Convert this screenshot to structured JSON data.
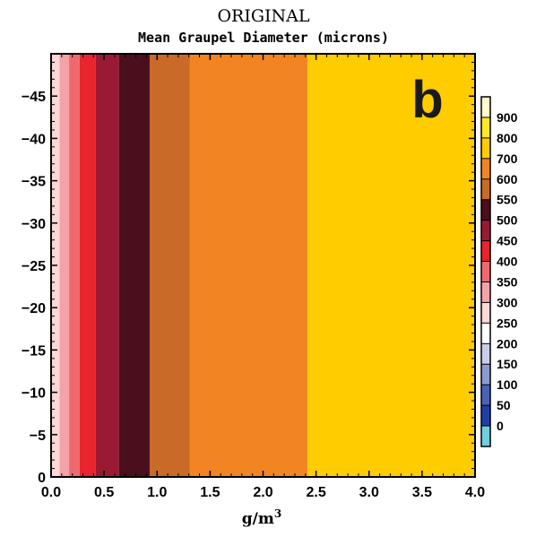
{
  "chart_data": {
    "type": "heatmap",
    "title": "ORIGINAL",
    "subtitle": "Mean Graupel Diameter (microns)",
    "panel_label": "b",
    "xlabel": "g/m",
    "xlabel_superscript": "3",
    "ylabel": "",
    "xlim": [
      0.0,
      4.0
    ],
    "ylim": [
      0,
      -50
    ],
    "x_ticks": [
      0.0,
      0.5,
      1.0,
      1.5,
      2.0,
      2.5,
      3.0,
      3.5,
      4.0
    ],
    "x_tick_labels": [
      "0.0",
      "0.5",
      "1.0",
      "1.5",
      "2.0",
      "2.5",
      "3.0",
      "3.5",
      "4.0"
    ],
    "y_ticks": [
      0,
      -5,
      -10,
      -15,
      -20,
      -25,
      -30,
      -35,
      -40,
      -45
    ],
    "y_tick_labels": [
      "0",
      "−5",
      "−10",
      "−15",
      "−20",
      "−25",
      "−30",
      "−35",
      "−40",
      "−45"
    ],
    "colorbar": {
      "levels": [
        0,
        50,
        100,
        150,
        200,
        250,
        300,
        350,
        400,
        450,
        500,
        550,
        600,
        700,
        800,
        900
      ],
      "labels": [
        "0",
        "50",
        "100",
        "150",
        "200",
        "250",
        "300",
        "350",
        "400",
        "450",
        "500",
        "550",
        "600",
        "700",
        "800",
        "900"
      ],
      "colors": [
        "#6fd0dc",
        "#1f3fa8",
        "#4a62b8",
        "#8c9ad0",
        "#c8cde8",
        "#ffffff",
        "#fdd6d6",
        "#f4a2a6",
        "#ef6a70",
        "#e8242c",
        "#9b1a33",
        "#4a0e1c",
        "#c96a28",
        "#f28522",
        "#ffcc00",
        "#ffe82a",
        "#fff9cc"
      ]
    },
    "bands": [
      {
        "x_start": 0.0,
        "x_end": 0.08,
        "value_range": "250-300",
        "color": "#fdd6d6"
      },
      {
        "x_start": 0.08,
        "x_end": 0.17,
        "value_range": "300-350",
        "color": "#f4a2a6"
      },
      {
        "x_start": 0.17,
        "x_end": 0.27,
        "value_range": "350-400",
        "color": "#ef6a70"
      },
      {
        "x_start": 0.27,
        "x_end": 0.42,
        "value_range": "400-450",
        "color": "#e8242c"
      },
      {
        "x_start": 0.42,
        "x_end": 0.64,
        "value_range": "450-500",
        "color": "#9b1a33"
      },
      {
        "x_start": 0.64,
        "x_end": 0.93,
        "value_range": "500-550",
        "color": "#4a0e1c"
      },
      {
        "x_start": 0.93,
        "x_end": 1.31,
        "value_range": "550-600",
        "color": "#c96a28"
      },
      {
        "x_start": 1.31,
        "x_end": 2.42,
        "value_range": "600-700",
        "color": "#f28522"
      },
      {
        "x_start": 2.42,
        "x_end": 4.0,
        "value_range": "700-800",
        "color": "#ffcc00"
      }
    ]
  }
}
